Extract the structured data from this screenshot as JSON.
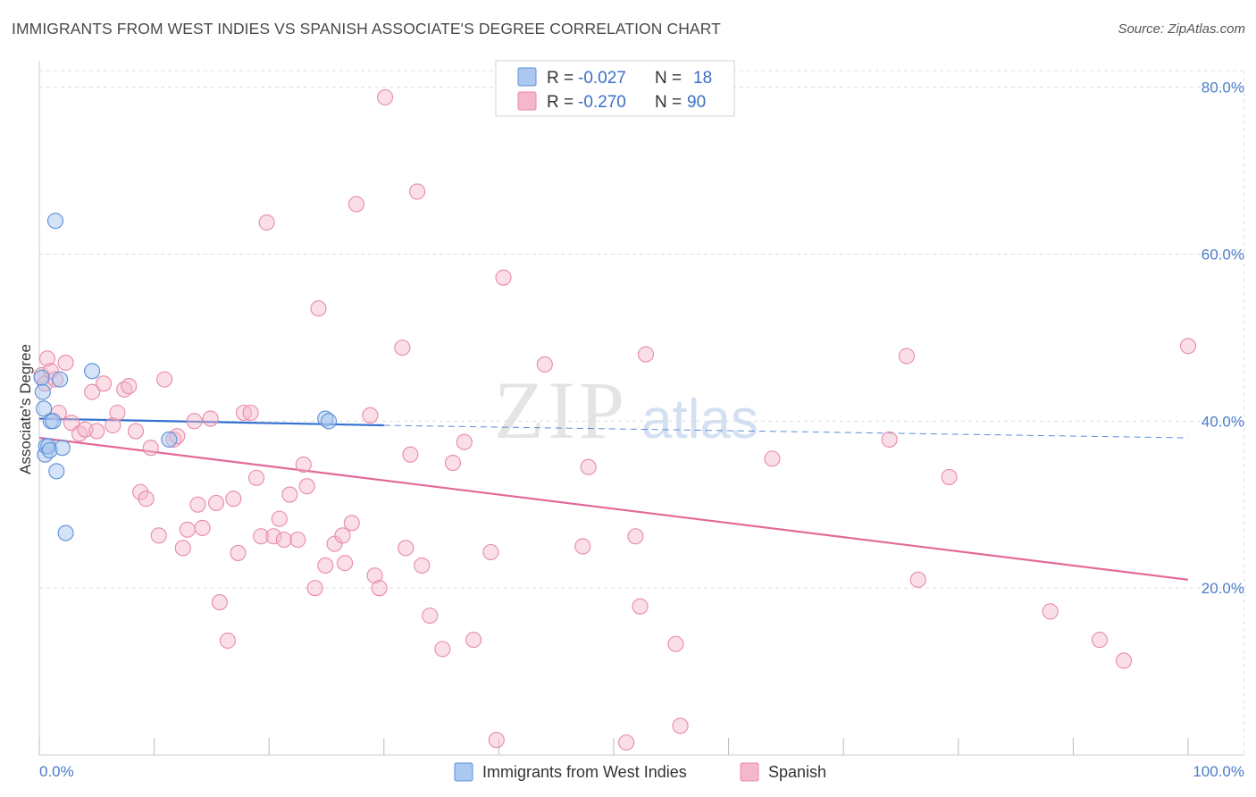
{
  "title": "IMMIGRANTS FROM WEST INDIES VS SPANISH ASSOCIATE'S DEGREE CORRELATION CHART",
  "source": "Source: ZipAtlas.com",
  "watermark": {
    "zip": "ZIP",
    "atlas": "atlas"
  },
  "colors": {
    "blue_fill": "#aac8f0",
    "blue_stroke": "#5b8fd8",
    "blue_line": "#3470cf",
    "pink_fill": "#f5b8ca",
    "pink_stroke": "#e88aa8",
    "pink_line": "#e3699a",
    "tick_text": "#4a7cc9",
    "grid": "#dddddd"
  },
  "legend": {
    "rows": [
      {
        "r_label": "R =",
        "r_value": "-0.027",
        "n_label": "N =",
        "n_value": "18"
      },
      {
        "r_label": "R =",
        "r_value": "-0.270",
        "n_label": "N =",
        "n_value": "90"
      }
    ]
  },
  "chart_data": {
    "type": "scatter",
    "title": "IMMIGRANTS FROM WEST INDIES VS SPANISH ASSOCIATE'S DEGREE CORRELATION CHART",
    "xlabel": "",
    "ylabel": "Associate's Degree",
    "xlim": [
      0,
      100
    ],
    "ylim": [
      0,
      82
    ],
    "x_tick_labels": [
      "0.0%",
      "100.0%"
    ],
    "y_ticks": [
      20,
      40,
      60,
      80
    ],
    "y_tick_labels": [
      "20.0%",
      "40.0%",
      "60.0%",
      "80.0%"
    ],
    "grid": true,
    "series": [
      {
        "name": "Immigrants from West Indies",
        "r": -0.027,
        "n": 18,
        "trend": {
          "x0": 0,
          "y0": 40.3,
          "x1": 30,
          "y1": 39.5,
          "dash_to_x": 100,
          "dash_to_y": 38.0
        },
        "points": [
          [
            0.2,
            45.2
          ],
          [
            0.3,
            43.5
          ],
          [
            0.4,
            41.5
          ],
          [
            0.5,
            36.0
          ],
          [
            0.6,
            37.0
          ],
          [
            0.8,
            37.0
          ],
          [
            0.9,
            36.5
          ],
          [
            1.0,
            40.0
          ],
          [
            1.2,
            40.0
          ],
          [
            1.4,
            64.0
          ],
          [
            1.5,
            34.0
          ],
          [
            1.8,
            45.0
          ],
          [
            2.0,
            36.8
          ],
          [
            2.3,
            26.6
          ],
          [
            4.6,
            46.0
          ],
          [
            11.3,
            37.8
          ],
          [
            24.9,
            40.3
          ],
          [
            25.2,
            40.0
          ]
        ]
      },
      {
        "name": "Spanish",
        "r": -0.27,
        "n": 90,
        "trend": {
          "x0": 0,
          "y0": 38.0,
          "x1": 100,
          "y1": 21.0
        },
        "points": [
          [
            0.2,
            45.5
          ],
          [
            0.5,
            44.5
          ],
          [
            0.7,
            47.5
          ],
          [
            1.0,
            46.0
          ],
          [
            1.4,
            45.0
          ],
          [
            1.7,
            41.0
          ],
          [
            2.3,
            47.0
          ],
          [
            2.8,
            39.8
          ],
          [
            3.5,
            38.5
          ],
          [
            4.0,
            39.0
          ],
          [
            4.6,
            43.5
          ],
          [
            5.0,
            38.8
          ],
          [
            5.6,
            44.5
          ],
          [
            6.4,
            39.5
          ],
          [
            6.8,
            41.0
          ],
          [
            7.4,
            43.8
          ],
          [
            7.8,
            44.2
          ],
          [
            8.4,
            38.8
          ],
          [
            8.8,
            31.5
          ],
          [
            9.3,
            30.7
          ],
          [
            9.7,
            36.8
          ],
          [
            10.4,
            26.3
          ],
          [
            10.9,
            45.0
          ],
          [
            11.7,
            37.8
          ],
          [
            12.0,
            38.2
          ],
          [
            12.5,
            24.8
          ],
          [
            12.9,
            27.0
          ],
          [
            13.5,
            40.0
          ],
          [
            13.8,
            30.0
          ],
          [
            14.2,
            27.2
          ],
          [
            14.9,
            40.3
          ],
          [
            15.4,
            30.2
          ],
          [
            15.7,
            18.3
          ],
          [
            16.4,
            13.7
          ],
          [
            16.9,
            30.7
          ],
          [
            17.3,
            24.2
          ],
          [
            17.8,
            41.0
          ],
          [
            18.4,
            41.0
          ],
          [
            18.9,
            33.2
          ],
          [
            19.3,
            26.2
          ],
          [
            19.8,
            63.8
          ],
          [
            20.4,
            26.2
          ],
          [
            20.9,
            28.3
          ],
          [
            21.3,
            25.8
          ],
          [
            21.8,
            31.2
          ],
          [
            22.5,
            25.8
          ],
          [
            23.0,
            34.8
          ],
          [
            23.3,
            32.2
          ],
          [
            24.0,
            20.0
          ],
          [
            24.3,
            53.5
          ],
          [
            24.9,
            22.7
          ],
          [
            25.7,
            25.3
          ],
          [
            26.4,
            26.3
          ],
          [
            26.6,
            23.0
          ],
          [
            27.2,
            27.8
          ],
          [
            27.6,
            66.0
          ],
          [
            28.8,
            40.7
          ],
          [
            29.2,
            21.5
          ],
          [
            29.6,
            20.0
          ],
          [
            30.1,
            78.8
          ],
          [
            31.6,
            48.8
          ],
          [
            31.9,
            24.8
          ],
          [
            32.3,
            36.0
          ],
          [
            32.9,
            67.5
          ],
          [
            33.3,
            22.7
          ],
          [
            34.0,
            16.7
          ],
          [
            35.1,
            12.7
          ],
          [
            36.0,
            35.0
          ],
          [
            37.0,
            37.5
          ],
          [
            37.8,
            13.8
          ],
          [
            39.3,
            24.3
          ],
          [
            39.8,
            1.8
          ],
          [
            40.4,
            57.2
          ],
          [
            44.0,
            46.8
          ],
          [
            47.3,
            25.0
          ],
          [
            47.8,
            34.5
          ],
          [
            51.1,
            1.5
          ],
          [
            51.9,
            26.2
          ],
          [
            52.3,
            17.8
          ],
          [
            52.8,
            48.0
          ],
          [
            55.4,
            13.3
          ],
          [
            55.8,
            3.5
          ],
          [
            63.8,
            35.5
          ],
          [
            74.0,
            37.8
          ],
          [
            75.5,
            47.8
          ],
          [
            76.5,
            21.0
          ],
          [
            79.2,
            33.3
          ],
          [
            88.0,
            17.2
          ],
          [
            92.3,
            13.8
          ],
          [
            94.4,
            11.3
          ],
          [
            100.0,
            49.0
          ]
        ]
      }
    ]
  }
}
